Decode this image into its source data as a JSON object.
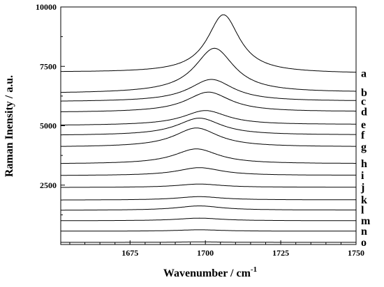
{
  "chart_data": {
    "type": "line",
    "title": "",
    "xlabel": "Wavenumber / cm",
    "xlabel_superscript": "-1",
    "ylabel": "Raman Inensity / a.u.",
    "xlim": [
      1652,
      1750
    ],
    "ylim": [
      0,
      10000
    ],
    "x_ticks": [
      1675,
      1700,
      1725,
      1750
    ],
    "y_ticks": [
      2500,
      5000,
      7500,
      10000
    ],
    "grid": false,
    "legend": "series labels at right end of each curve",
    "series": [
      {
        "name": "a",
        "baseline": 7250,
        "slope": -0.5,
        "peak_center": 1706,
        "peak_height": 2450,
        "peak_width": 6.5,
        "color": "#000000"
      },
      {
        "name": "b",
        "baseline": 6360,
        "slope": 0.4,
        "peak_center": 1703,
        "peak_height": 1880,
        "peak_width": 8,
        "color": "#000000"
      },
      {
        "name": "c",
        "baseline": 6010,
        "slope": 0.2,
        "peak_center": 1702,
        "peak_height": 930,
        "peak_width": 9,
        "color": "#000000"
      },
      {
        "name": "d",
        "baseline": 5560,
        "slope": 0.3,
        "peak_center": 1701,
        "peak_height": 840,
        "peak_width": 9,
        "color": "#000000"
      },
      {
        "name": "e",
        "baseline": 5010,
        "slope": 0.4,
        "peak_center": 1700,
        "peak_height": 610,
        "peak_width": 9,
        "color": "#000000"
      },
      {
        "name": "f",
        "baseline": 4590,
        "slope": 0.2,
        "peak_center": 1698,
        "peak_height": 720,
        "peak_width": 9,
        "color": "#000000"
      },
      {
        "name": "g",
        "baseline": 4100,
        "slope": 0.1,
        "peak_center": 1697,
        "peak_height": 800,
        "peak_width": 9,
        "color": "#000000"
      },
      {
        "name": "h",
        "baseline": 3390,
        "slope": 0.1,
        "peak_center": 1697,
        "peak_height": 630,
        "peak_width": 9,
        "color": "#000000"
      },
      {
        "name": "i",
        "baseline": 2900,
        "slope": 0.1,
        "peak_center": 1698,
        "peak_height": 330,
        "peak_width": 9,
        "color": "#000000"
      },
      {
        "name": "j",
        "baseline": 2400,
        "slope": 0.1,
        "peak_center": 1698,
        "peak_height": 140,
        "peak_width": 9,
        "color": "#000000"
      },
      {
        "name": "k",
        "baseline": 1870,
        "slope": 0.1,
        "peak_center": 1698,
        "peak_height": 140,
        "peak_width": 9,
        "color": "#000000"
      },
      {
        "name": "l",
        "baseline": 1440,
        "slope": 0.1,
        "peak_center": 1698,
        "peak_height": 180,
        "peak_width": 9,
        "color": "#000000"
      },
      {
        "name": "m",
        "baseline": 1000,
        "slope": 0.0,
        "peak_center": 1698,
        "peak_height": 110,
        "peak_width": 9,
        "color": "#000000"
      },
      {
        "name": "n",
        "baseline": 560,
        "slope": 0.0,
        "peak_center": 1698,
        "peak_height": 60,
        "peak_width": 9,
        "color": "#000000"
      },
      {
        "name": "o",
        "baseline": 90,
        "slope": 0.0,
        "peak_center": 1698,
        "peak_height": 20,
        "peak_width": 9,
        "color": "#000000"
      }
    ]
  }
}
